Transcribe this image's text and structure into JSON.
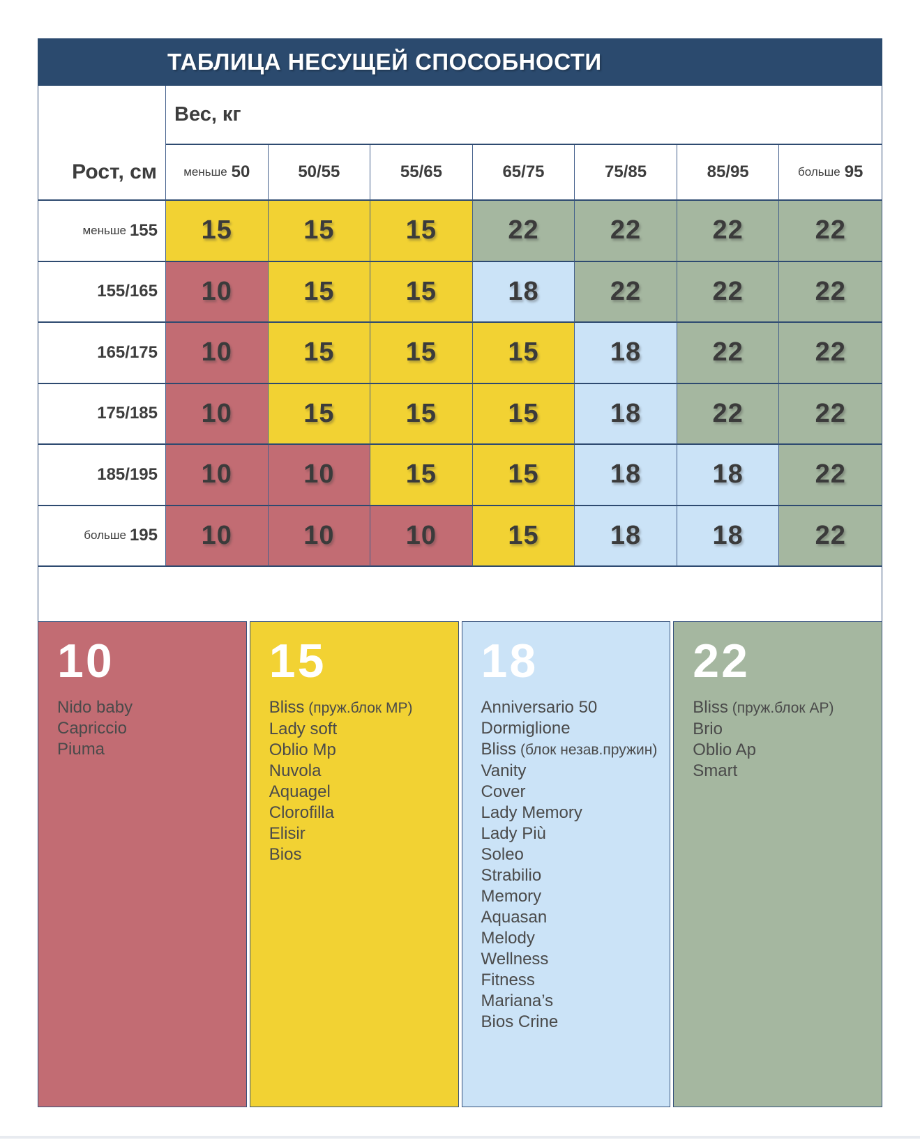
{
  "title": "ТАБЛИЦА НЕСУЩЕЙ СПОСОБНОСТИ",
  "axis": {
    "weight_label": "Вес, кг",
    "height_label": "Рост, см"
  },
  "chart_data": {
    "type": "heatmap",
    "title": "ТАБЛИЦА НЕСУЩЕЙ СПОСОБНОСТИ",
    "x_axis_label": "Вес, кг",
    "y_axis_label": "Рост, см",
    "x_categories": [
      "меньше 50",
      "50/55",
      "55/65",
      "65/75",
      "75/85",
      "85/95",
      "больше 95"
    ],
    "y_categories": [
      "меньше 155",
      "155/165",
      "165/175",
      "175/185",
      "185/195",
      "больше 195"
    ],
    "values": [
      [
        15,
        15,
        15,
        22,
        22,
        22,
        22
      ],
      [
        10,
        15,
        15,
        18,
        22,
        22,
        22
      ],
      [
        10,
        15,
        15,
        15,
        18,
        22,
        22
      ],
      [
        10,
        15,
        15,
        15,
        18,
        22,
        22
      ],
      [
        10,
        10,
        15,
        15,
        18,
        18,
        22
      ],
      [
        10,
        10,
        10,
        15,
        18,
        18,
        22
      ]
    ],
    "value_colors": {
      "10": "#c26c73",
      "15": "#f2d233",
      "18": "#cbe3f7",
      "22": "#a5b7a0"
    },
    "legend_position": "bottom",
    "grid": true
  },
  "legend": {
    "groups": [
      {
        "value": "10",
        "color_key": "10",
        "items": [
          {
            "name": "Nido baby"
          },
          {
            "name": "Capriccio"
          },
          {
            "name": "Piuma"
          }
        ]
      },
      {
        "value": "15",
        "color_key": "15",
        "items": [
          {
            "name": "Bliss",
            "note": "(пруж.блок MP)"
          },
          {
            "name": "Lady soft"
          },
          {
            "name": "Oblio Mp"
          },
          {
            "name": "Nuvola"
          },
          {
            "name": "Aquagel"
          },
          {
            "name": "Clorofilla"
          },
          {
            "name": "Elisir"
          },
          {
            "name": "Bios"
          }
        ]
      },
      {
        "value": "18",
        "color_key": "18",
        "items": [
          {
            "name": "Anniversario 50"
          },
          {
            "name": "Dormiglione"
          },
          {
            "name": "Bliss",
            "note": "(блок незав.пружин)"
          },
          {
            "name": "Vanity"
          },
          {
            "name": "Cover"
          },
          {
            "name": "Lady Memory"
          },
          {
            "name": "Lady Più"
          },
          {
            "name": "Soleo"
          },
          {
            "name": "Strabilio"
          },
          {
            "name": "Memory"
          },
          {
            "name": "Aquasan"
          },
          {
            "name": "Melody"
          },
          {
            "name": "Wellness"
          },
          {
            "name": "Fitness"
          },
          {
            "name": "Mariana’s"
          },
          {
            "name": "Bios Crine"
          }
        ]
      },
      {
        "value": "22",
        "color_key": "22",
        "items": [
          {
            "name": "Bliss",
            "note": "(пруж.блок AP)"
          },
          {
            "name": "Brio"
          },
          {
            "name": "Oblio Ap"
          },
          {
            "name": "Smart"
          }
        ]
      }
    ]
  },
  "colors": {
    "10": "#c26c73",
    "15": "#f2d233",
    "18": "#cbe3f7",
    "22": "#a5b7a0",
    "header_bg": "#2b4a6e",
    "title_text": "#ffffff",
    "cell_text": "#3b3b3b",
    "border": "#35517c",
    "bottom_strip": "#e8ebf0"
  }
}
